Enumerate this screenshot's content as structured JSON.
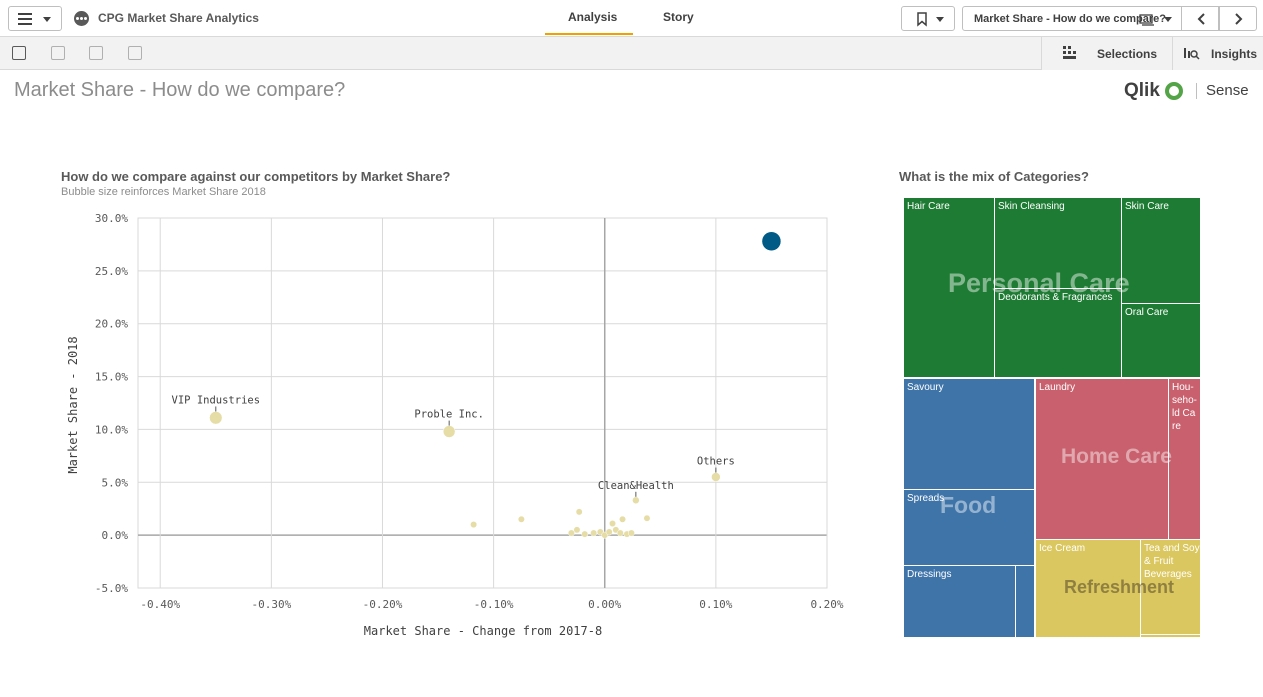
{
  "app": {
    "title": "CPG Market Share Analytics"
  },
  "nav": {
    "tabs": [
      {
        "label": "Analysis"
      },
      {
        "label": "Story"
      }
    ]
  },
  "header": {
    "sheet_name": "Market Share - How do we compare?"
  },
  "toolbar": {
    "selections_label": "Selections",
    "insights_label": "Insights"
  },
  "sheet": {
    "title": "Market Share - How do we compare?"
  },
  "logo": {
    "brand": "Qlik",
    "product": "Sense"
  },
  "scatter": {
    "title": "How do we compare against our competitors by Market Share?",
    "subtitle": "Bubble size reinforces Market Share 2018"
  },
  "treemap": {
    "title": "What is the mix of Categories?",
    "groups": [
      {
        "name": "Personal Care",
        "color": "#1e7b34",
        "items": [
          "Hair Care",
          "Skin Cleansing",
          "Skin Care",
          "Deodorants & Fragrances",
          "Oral Care"
        ]
      },
      {
        "name": "Food",
        "color": "#3f74a9",
        "items": [
          "Savoury",
          "Spreads",
          "Dressings"
        ]
      },
      {
        "name": "Home Care",
        "color": "#c9606d",
        "items": [
          "Laundry",
          "Hou-seho-ld Care"
        ]
      },
      {
        "name": "Refreshment",
        "color": "#dbc75f",
        "items": [
          "Ice Cream",
          "Tea and Soy & Fruit Beverages"
        ]
      }
    ]
  },
  "chart_data": [
    {
      "type": "scatter",
      "title": "How do we compare against our competitors by Market Share?",
      "subtitle": "Bubble size reinforces Market Share 2018",
      "xlabel": "Market Share - Change from 2017-8",
      "ylabel": "Market Share - 2018",
      "xlim": [
        -0.42,
        0.2
      ],
      "ylim": [
        -5,
        30
      ],
      "x_ticks": [
        "-0.40%",
        "-0.30%",
        "-0.20%",
        "-0.10%",
        "0.00%",
        "0.10%",
        "0.20%"
      ],
      "y_ticks": [
        "30.0%",
        "25.0%",
        "20.0%",
        "15.0%",
        "10.0%",
        "5.0%",
        "0.0%",
        "-5.0%"
      ],
      "grid": true,
      "points": [
        {
          "label": "",
          "x": 0.15,
          "y": 27.8,
          "color": "#005a86",
          "highlight": true
        },
        {
          "label": "VIP Industries",
          "x": -0.35,
          "y": 11.1,
          "color": "#e6dca6"
        },
        {
          "label": "Proble Inc.",
          "x": -0.14,
          "y": 9.8,
          "color": "#e6dca6"
        },
        {
          "label": "Others",
          "x": 0.1,
          "y": 5.5,
          "color": "#e6dca6"
        },
        {
          "label": "Clean&Health",
          "x": 0.028,
          "y": 3.3,
          "color": "#e6dca6"
        },
        {
          "label": "",
          "x": -0.118,
          "y": 1.0,
          "color": "#e6dca6"
        },
        {
          "label": "",
          "x": -0.075,
          "y": 1.5,
          "color": "#e6dca6"
        },
        {
          "label": "",
          "x": -0.023,
          "y": 2.2,
          "color": "#e6dca6"
        },
        {
          "label": "",
          "x": -0.03,
          "y": 0.2,
          "color": "#e6dca6"
        },
        {
          "label": "",
          "x": -0.025,
          "y": 0.5,
          "color": "#e6dca6"
        },
        {
          "label": "",
          "x": -0.018,
          "y": 0.1,
          "color": "#e6dca6"
        },
        {
          "label": "",
          "x": -0.01,
          "y": 0.2,
          "color": "#e6dca6"
        },
        {
          "label": "",
          "x": -0.004,
          "y": 0.3,
          "color": "#e6dca6"
        },
        {
          "label": "",
          "x": 0.0,
          "y": 0.0,
          "color": "#e6dca6"
        },
        {
          "label": "",
          "x": 0.004,
          "y": 0.3,
          "color": "#e6dca6"
        },
        {
          "label": "",
          "x": 0.007,
          "y": 1.1,
          "color": "#e6dca6"
        },
        {
          "label": "",
          "x": 0.01,
          "y": 0.5,
          "color": "#e6dca6"
        },
        {
          "label": "",
          "x": 0.014,
          "y": 0.2,
          "color": "#e6dca6"
        },
        {
          "label": "",
          "x": 0.016,
          "y": 1.5,
          "color": "#e6dca6"
        },
        {
          "label": "",
          "x": 0.02,
          "y": 0.1,
          "color": "#e6dca6"
        },
        {
          "label": "",
          "x": 0.024,
          "y": 0.2,
          "color": "#e6dca6"
        },
        {
          "label": "",
          "x": 0.038,
          "y": 1.6,
          "color": "#e6dca6"
        }
      ]
    },
    {
      "type": "treemap",
      "title": "What is the mix of Categories?",
      "groups": [
        "Personal Care",
        "Food",
        "Home Care",
        "Refreshment"
      ]
    }
  ]
}
